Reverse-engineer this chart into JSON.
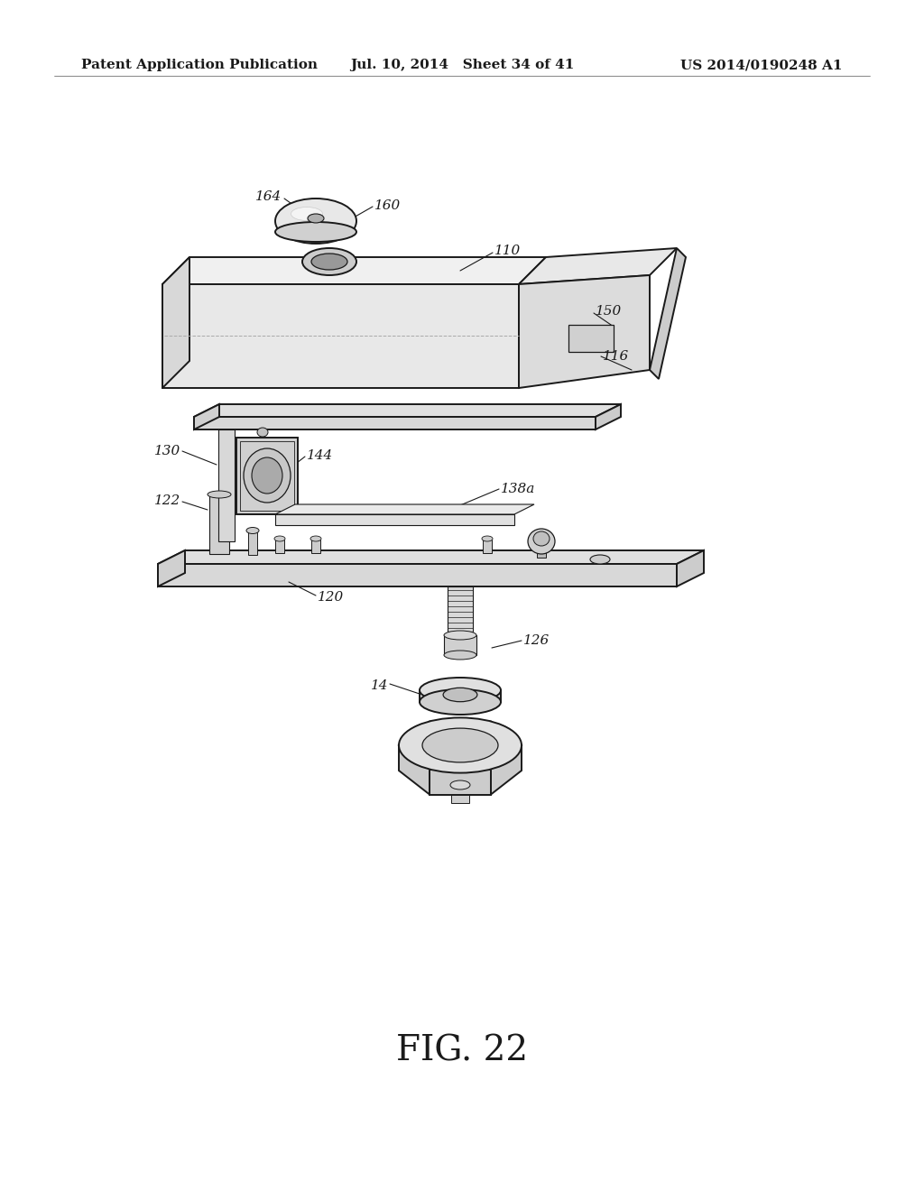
{
  "background_color": "#ffffff",
  "header_left": "Patent Application Publication",
  "header_mid": "Jul. 10, 2014   Sheet 34 of 41",
  "header_right": "US 2014/0190248 A1",
  "fig_label": "FIG. 22",
  "line_color": "#1a1a1a",
  "text_color": "#1a1a1a",
  "header_fontsize": 11,
  "fig_label_fontsize": 28,
  "label_fontsize": 11
}
